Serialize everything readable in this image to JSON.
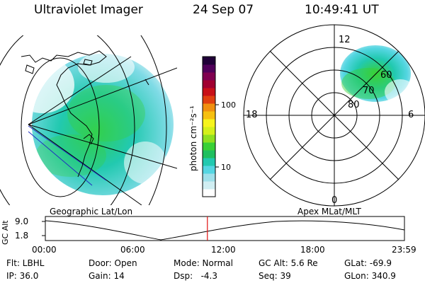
{
  "header": {
    "instrument": "Ultraviolet Imager",
    "date": "24 Sep 07",
    "time": "10:49:41 UT"
  },
  "left_panel": {
    "caption": "Geographic Lat/Lon"
  },
  "right_panel": {
    "caption": "Apex MLat/MLT",
    "mlt_labels": {
      "top": "12",
      "left": "18",
      "right": "6",
      "bottom": "0"
    },
    "lat_labels": [
      "60",
      "70",
      "80"
    ]
  },
  "colorbar": {
    "unit_label": "photon cm⁻²s⁻¹",
    "tick_high": "100",
    "tick_low": "10",
    "colors": [
      "#ffffff",
      "#d0eef2",
      "#9fe0ea",
      "#55d6e2",
      "#22c9b0",
      "#1fbf5f",
      "#39d036",
      "#8fe020",
      "#d4f01a",
      "#f6f41c",
      "#f6c010",
      "#f09010",
      "#e04010",
      "#c81018",
      "#a00030",
      "#800050",
      "#50005a",
      "#200038"
    ]
  },
  "alt_plot": {
    "y_label": "GC Alt",
    "y_max": 9.0,
    "y_min": 1.8,
    "y_max_label": "9.0",
    "y_min_label": "1.8",
    "x_labels": [
      "00:00",
      "06:00",
      "12:00",
      "18:00",
      "23:59"
    ],
    "current_hour": 10.83
  },
  "status": {
    "flt": "Flt: LBHL",
    "door": "Door: Open",
    "mode": "Mode: Normal",
    "gc_alt": "GC Alt: 5.6 Re",
    "glat": "GLat: -69.9",
    "ip": "IP: 36.0",
    "gain": "Gain: 14",
    "dsp": "Dsp:   -4.3",
    "seq": "Seq: 39",
    "glon": "GLon: 340.9"
  }
}
